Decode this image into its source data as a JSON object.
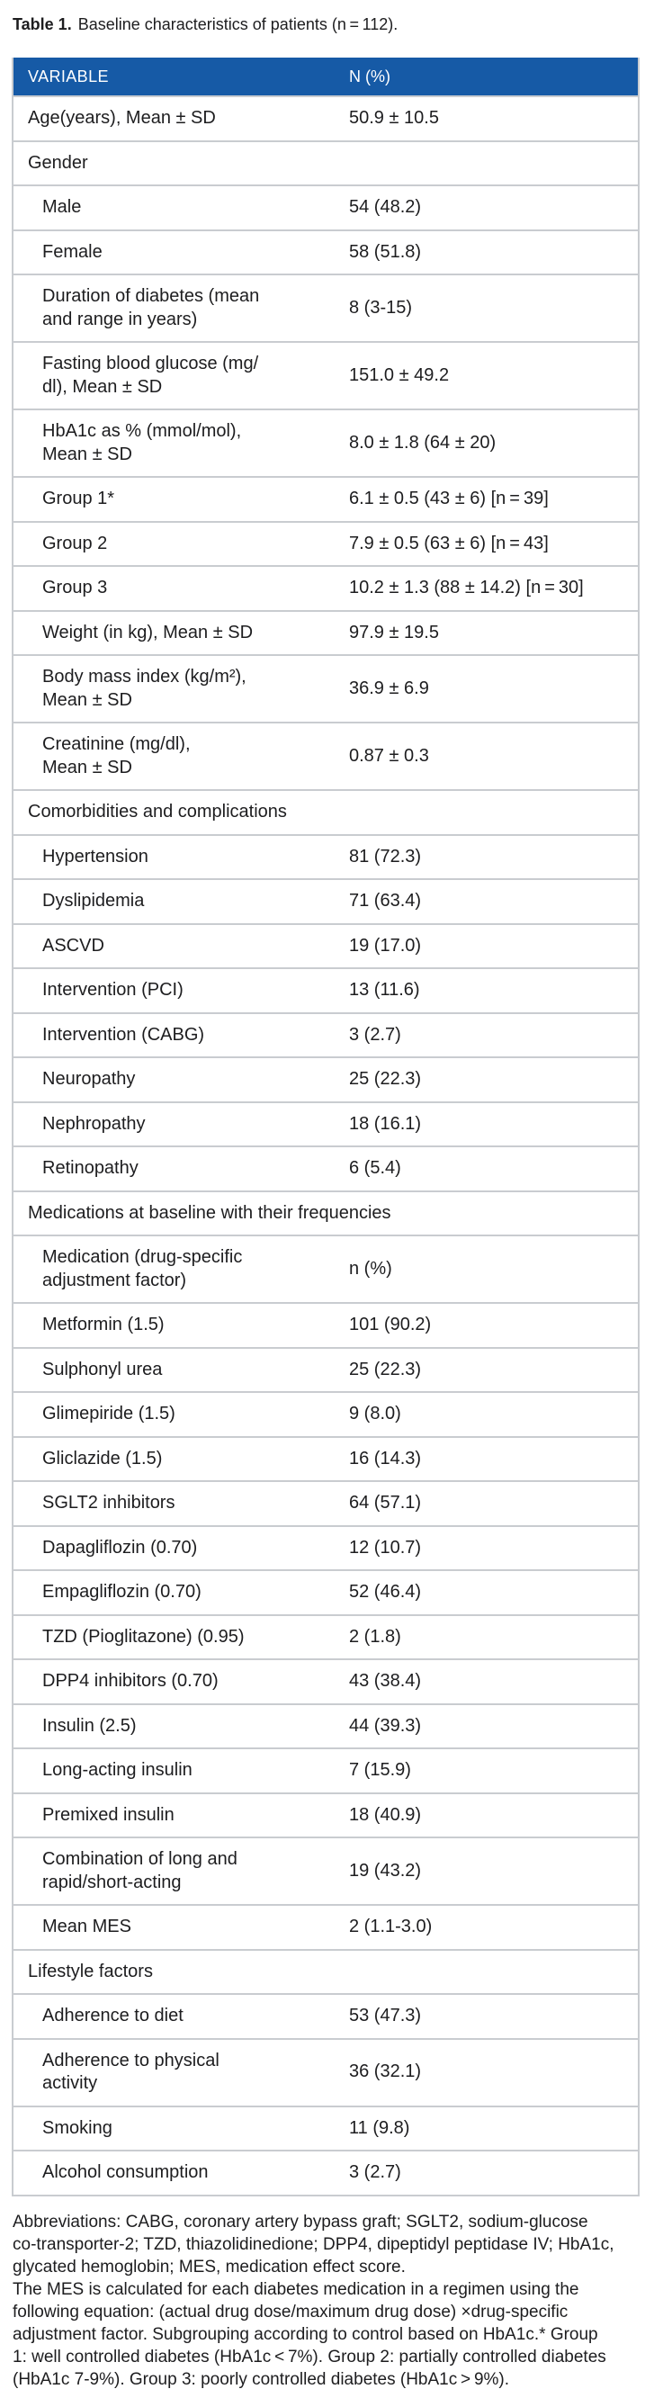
{
  "caption": {
    "label": "Table 1.",
    "text": "Baseline characteristics of patients (n = 112)."
  },
  "table": {
    "header_bg": "#165aa6",
    "header": {
      "variable": "VARIABLE",
      "value": "N (%)"
    },
    "rows": [
      {
        "label": "Age(years), Mean ± SD",
        "value": "50.9 ± 10.5",
        "indent": false,
        "section": false
      },
      {
        "label": "Gender",
        "value": "",
        "indent": false,
        "section": true
      },
      {
        "label": "Male",
        "value": "54 (48.2)",
        "indent": true,
        "section": false
      },
      {
        "label": "Female",
        "value": "58 (51.8)",
        "indent": true,
        "section": false
      },
      {
        "label": "Duration of diabetes (mean\nand range in years)",
        "value": "8 (3-15)",
        "indent": true,
        "section": false
      },
      {
        "label": "Fasting blood glucose (mg/\ndl), Mean ± SD",
        "value": "151.0 ± 49.2",
        "indent": true,
        "section": false
      },
      {
        "label": "HbA1c as % (mmol/mol),\nMean ± SD",
        "value": "8.0 ± 1.8 (64 ± 20)",
        "indent": true,
        "section": false
      },
      {
        "label": "Group 1*",
        "value": "6.1 ± 0.5 (43 ± 6) [n = 39]",
        "indent": true,
        "section": false
      },
      {
        "label": "Group 2",
        "value": "7.9 ± 0.5 (63 ± 6) [n = 43]",
        "indent": true,
        "section": false
      },
      {
        "label": "Group 3",
        "value": "10.2 ± 1.3 (88 ± 14.2) [n = 30]",
        "indent": true,
        "section": false
      },
      {
        "label": "Weight (in kg), Mean ± SD",
        "value": "97.9 ± 19.5",
        "indent": true,
        "section": false
      },
      {
        "label": "Body mass index (kg/m²),\nMean ± SD",
        "value": "36.9 ± 6.9",
        "indent": true,
        "section": false
      },
      {
        "label": "Creatinine (mg/dl),\nMean ± SD",
        "value": "0.87 ± 0.3",
        "indent": true,
        "section": false
      },
      {
        "label": "Comorbidities and complications",
        "value": "",
        "indent": false,
        "section": true
      },
      {
        "label": "Hypertension",
        "value": "81 (72.3)",
        "indent": true,
        "section": false
      },
      {
        "label": "Dyslipidemia",
        "value": "71 (63.4)",
        "indent": true,
        "section": false
      },
      {
        "label": "ASCVD",
        "value": "19 (17.0)",
        "indent": true,
        "section": false
      },
      {
        "label": "Intervention (PCI)",
        "value": "13 (11.6)",
        "indent": true,
        "section": false
      },
      {
        "label": "Intervention (CABG)",
        "value": "3 (2.7)",
        "indent": true,
        "section": false
      },
      {
        "label": "Neuropathy",
        "value": "25 (22.3)",
        "indent": true,
        "section": false
      },
      {
        "label": "Nephropathy",
        "value": "18 (16.1)",
        "indent": true,
        "section": false
      },
      {
        "label": "Retinopathy",
        "value": "6 (5.4)",
        "indent": true,
        "section": false
      },
      {
        "label": "Medications at baseline with their frequencies",
        "value": "",
        "indent": false,
        "section": true
      },
      {
        "label": "Medication (drug-specific\nadjustment factor)",
        "value": "n (%)",
        "indent": true,
        "section": false
      },
      {
        "label": "Metformin (1.5)",
        "value": "101 (90.2)",
        "indent": true,
        "section": false
      },
      {
        "label": "Sulphonyl urea",
        "value": "25 (22.3)",
        "indent": true,
        "section": false
      },
      {
        "label": "Glimepiride (1.5)",
        "value": "9 (8.0)",
        "indent": true,
        "section": false
      },
      {
        "label": "Gliclazide (1.5)",
        "value": "16 (14.3)",
        "indent": true,
        "section": false
      },
      {
        "label": "SGLT2 inhibitors",
        "value": "64 (57.1)",
        "indent": true,
        "section": false
      },
      {
        "label": "Dapagliflozin (0.70)",
        "value": "12 (10.7)",
        "indent": true,
        "section": false
      },
      {
        "label": "Empagliflozin (0.70)",
        "value": "52 (46.4)",
        "indent": true,
        "section": false
      },
      {
        "label": "TZD (Pioglitazone) (0.95)",
        "value": "2 (1.8)",
        "indent": true,
        "section": false
      },
      {
        "label": "DPP4 inhibitors (0.70)",
        "value": "43 (38.4)",
        "indent": true,
        "section": false
      },
      {
        "label": "Insulin (2.5)",
        "value": "44 (39.3)",
        "indent": true,
        "section": false
      },
      {
        "label": "Long-acting insulin",
        "value": "7 (15.9)",
        "indent": true,
        "section": false
      },
      {
        "label": "Premixed insulin",
        "value": "18 (40.9)",
        "indent": true,
        "section": false
      },
      {
        "label": "Combination of long and\nrapid/short-acting",
        "value": "19 (43.2)",
        "indent": true,
        "section": false
      },
      {
        "label": "Mean MES",
        "value": "2 (1.1-3.0)",
        "indent": true,
        "section": false
      },
      {
        "label": "Lifestyle factors",
        "value": "",
        "indent": false,
        "section": true
      },
      {
        "label": "Adherence to diet",
        "value": "53 (47.3)",
        "indent": true,
        "section": false
      },
      {
        "label": "Adherence to physical\nactivity",
        "value": "36 (32.1)",
        "indent": true,
        "section": false
      },
      {
        "label": "Smoking",
        "value": "11 (9.8)",
        "indent": true,
        "section": false
      },
      {
        "label": "Alcohol consumption",
        "value": "3 (2.7)",
        "indent": true,
        "section": false
      }
    ]
  },
  "footnote": {
    "lines": [
      "Abbreviations: CABG, coronary artery bypass graft; SGLT2, sodium-glucose",
      "co-transporter-2; TZD, thiazolidinedione; DPP4, dipeptidyl peptidase IV; HbA1c,",
      "glycated hemoglobin; MES, medication effect score.",
      "The MES is calculated for each diabetes medication in a regimen using the",
      "following equation: (actual drug dose/maximum drug dose) ×drug-specific",
      "adjustment factor. Subgrouping according to control based on HbA1c.* Group",
      "1: well controlled diabetes (HbA1c < 7%). Group 2: partially controlled diabetes",
      "(HbA1c 7-9%). Group 3: poorly controlled diabetes (HbA1c > 9%)."
    ]
  }
}
